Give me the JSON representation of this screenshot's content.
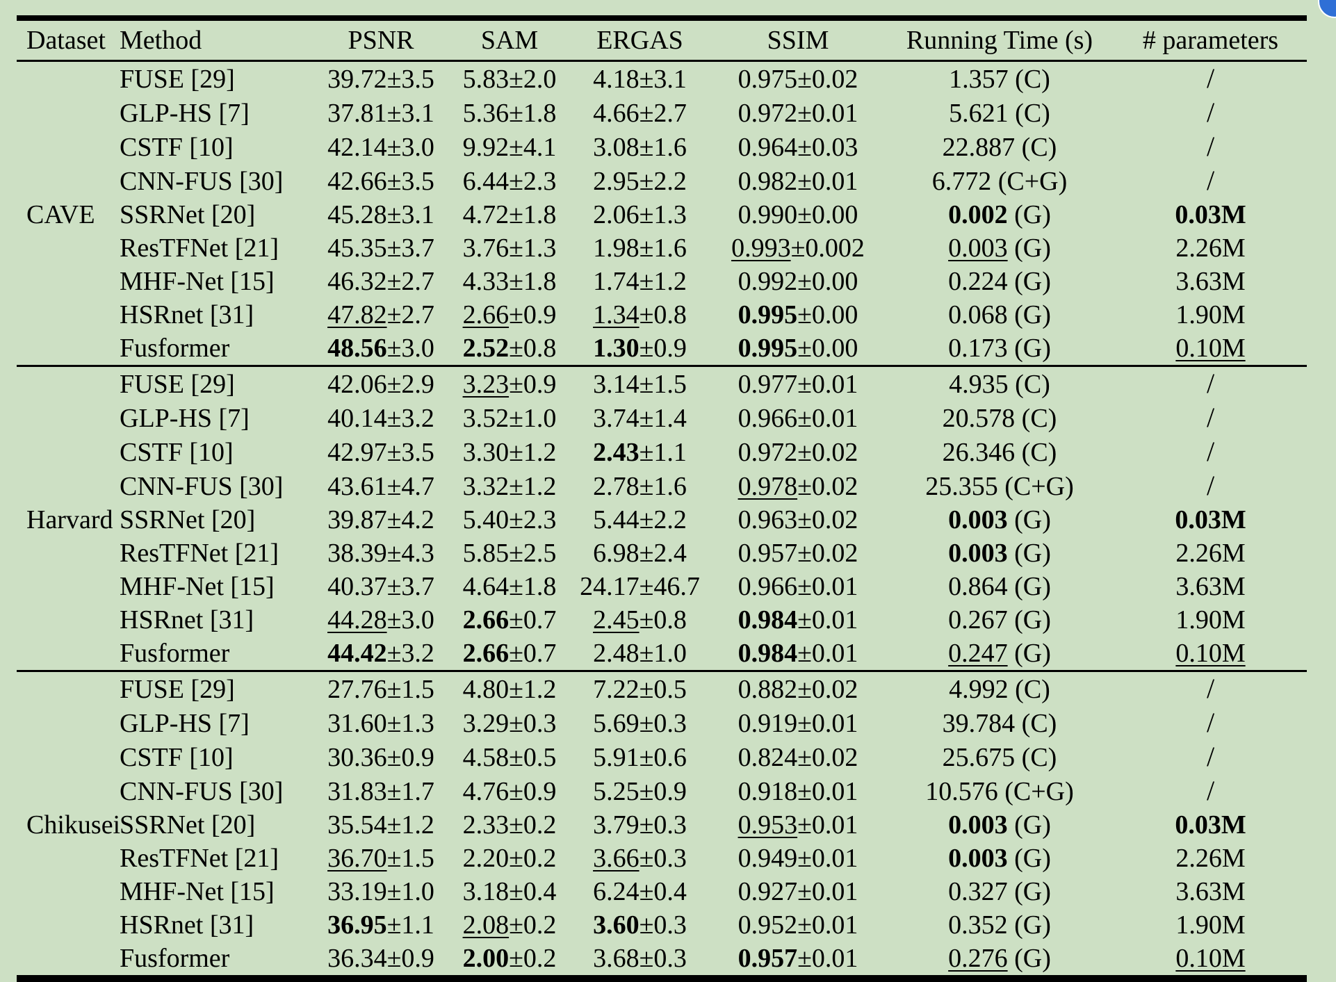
{
  "table": {
    "headers": [
      "Dataset",
      "Method",
      "PSNR",
      "SAM",
      "ERGAS",
      "SSIM",
      "Running Time (s)",
      "# parameters"
    ],
    "groups": [
      {
        "dataset": "CAVE",
        "rows": [
          {
            "method": "FUSE [29]",
            "psnr": {
              "v": "39.72",
              "pm": "3.5"
            },
            "sam": {
              "v": "5.83",
              "pm": "2.0"
            },
            "ergas": {
              "v": "4.18",
              "pm": "3.1"
            },
            "ssim": {
              "v": "0.975",
              "pm": "0.02"
            },
            "time": {
              "v": "1.357",
              "dev": "(C)"
            },
            "params": {
              "v": "/"
            }
          },
          {
            "method": "GLP-HS [7]",
            "psnr": {
              "v": "37.81",
              "pm": "3.1"
            },
            "sam": {
              "v": "5.36",
              "pm": "1.8"
            },
            "ergas": {
              "v": "4.66",
              "pm": "2.7"
            },
            "ssim": {
              "v": "0.972",
              "pm": "0.01"
            },
            "time": {
              "v": "5.621",
              "dev": "(C)"
            },
            "params": {
              "v": "/"
            }
          },
          {
            "method": "CSTF [10]",
            "psnr": {
              "v": "42.14",
              "pm": "3.0"
            },
            "sam": {
              "v": "9.92",
              "pm": "4.1"
            },
            "ergas": {
              "v": "3.08",
              "pm": "1.6"
            },
            "ssim": {
              "v": "0.964",
              "pm": "0.03"
            },
            "time": {
              "v": "22.887",
              "dev": "(C)"
            },
            "params": {
              "v": "/"
            }
          },
          {
            "method": "CNN-FUS [30]",
            "psnr": {
              "v": "42.66",
              "pm": "3.5"
            },
            "sam": {
              "v": "6.44",
              "pm": "2.3"
            },
            "ergas": {
              "v": "2.95",
              "pm": "2.2"
            },
            "ssim": {
              "v": "0.982",
              "pm": "0.01"
            },
            "time": {
              "v": "6.772",
              "dev": "(C+G)"
            },
            "params": {
              "v": "/"
            }
          },
          {
            "method": "SSRNet [20]",
            "psnr": {
              "v": "45.28",
              "pm": "3.1"
            },
            "sam": {
              "v": "4.72",
              "pm": "1.8"
            },
            "ergas": {
              "v": "2.06",
              "pm": "1.3"
            },
            "ssim": {
              "v": "0.990",
              "pm": "0.00"
            },
            "time": {
              "v": "0.002",
              "dev": "(G)",
              "s": "b"
            },
            "params": {
              "v": "0.03M",
              "s": "b"
            }
          },
          {
            "method": "ResTFNet [21]",
            "psnr": {
              "v": "45.35",
              "pm": "3.7"
            },
            "sam": {
              "v": "3.76",
              "pm": "1.3"
            },
            "ergas": {
              "v": "1.98",
              "pm": "1.6"
            },
            "ssim": {
              "v": "0.993",
              "pm": "0.002",
              "s": "u"
            },
            "time": {
              "v": "0.003",
              "dev": "(G)",
              "s": "u"
            },
            "params": {
              "v": "2.26M"
            }
          },
          {
            "method": "MHF-Net [15]",
            "psnr": {
              "v": "46.32",
              "pm": "2.7"
            },
            "sam": {
              "v": "4.33",
              "pm": "1.8"
            },
            "ergas": {
              "v": "1.74",
              "pm": "1.2"
            },
            "ssim": {
              "v": "0.992",
              "pm": "0.00"
            },
            "time": {
              "v": "0.224",
              "dev": "(G)"
            },
            "params": {
              "v": "3.63M"
            }
          },
          {
            "method": "HSRnet [31]",
            "psnr": {
              "v": "47.82",
              "pm": "2.7",
              "s": "u"
            },
            "sam": {
              "v": "2.66",
              "pm": "0.9",
              "s": "u"
            },
            "ergas": {
              "v": "1.34",
              "pm": "0.8",
              "s": "u"
            },
            "ssim": {
              "v": "0.995",
              "pm": "0.00",
              "s": "b"
            },
            "time": {
              "v": "0.068",
              "dev": "(G)"
            },
            "params": {
              "v": "1.90M"
            }
          },
          {
            "method": "Fusformer",
            "psnr": {
              "v": "48.56",
              "pm": "3.0",
              "s": "b"
            },
            "sam": {
              "v": "2.52",
              "pm": "0.8",
              "s": "b"
            },
            "ergas": {
              "v": "1.30",
              "pm": "0.9",
              "s": "b"
            },
            "ssim": {
              "v": "0.995",
              "pm": "0.00",
              "s": "b"
            },
            "time": {
              "v": "0.173",
              "dev": "(G)"
            },
            "params": {
              "v": "0.10M",
              "s": "u"
            }
          }
        ]
      },
      {
        "dataset": "Harvard",
        "rows": [
          {
            "method": "FUSE [29]",
            "psnr": {
              "v": "42.06",
              "pm": "2.9"
            },
            "sam": {
              "v": "3.23",
              "pm": "0.9",
              "s": "u"
            },
            "ergas": {
              "v": "3.14",
              "pm": "1.5"
            },
            "ssim": {
              "v": "0.977",
              "pm": "0.01"
            },
            "time": {
              "v": "4.935",
              "dev": "(C)"
            },
            "params": {
              "v": "/"
            }
          },
          {
            "method": "GLP-HS [7]",
            "psnr": {
              "v": "40.14",
              "pm": "3.2"
            },
            "sam": {
              "v": "3.52",
              "pm": "1.0"
            },
            "ergas": {
              "v": "3.74",
              "pm": "1.4"
            },
            "ssim": {
              "v": "0.966",
              "pm": "0.01"
            },
            "time": {
              "v": "20.578",
              "dev": "(C)"
            },
            "params": {
              "v": "/"
            }
          },
          {
            "method": "CSTF [10]",
            "psnr": {
              "v": "42.97",
              "pm": "3.5"
            },
            "sam": {
              "v": "3.30",
              "pm": "1.2"
            },
            "ergas": {
              "v": "2.43",
              "pm": "1.1",
              "s": "b"
            },
            "ssim": {
              "v": "0.972",
              "pm": "0.02"
            },
            "time": {
              "v": "26.346",
              "dev": "(C)"
            },
            "params": {
              "v": "/"
            }
          },
          {
            "method": "CNN-FUS [30]",
            "psnr": {
              "v": "43.61",
              "pm": "4.7"
            },
            "sam": {
              "v": "3.32",
              "pm": "1.2"
            },
            "ergas": {
              "v": "2.78",
              "pm": "1.6"
            },
            "ssim": {
              "v": "0.978",
              "pm": "0.02",
              "s": "u"
            },
            "time": {
              "v": "25.355",
              "dev": "(C+G)"
            },
            "params": {
              "v": "/"
            }
          },
          {
            "method": "SSRNet [20]",
            "psnr": {
              "v": "39.87",
              "pm": "4.2"
            },
            "sam": {
              "v": "5.40",
              "pm": "2.3"
            },
            "ergas": {
              "v": "5.44",
              "pm": "2.2"
            },
            "ssim": {
              "v": "0.963",
              "pm": "0.02"
            },
            "time": {
              "v": "0.003",
              "dev": "(G)",
              "s": "b"
            },
            "params": {
              "v": "0.03M",
              "s": "b"
            }
          },
          {
            "method": "ResTFNet [21]",
            "psnr": {
              "v": "38.39",
              "pm": "4.3"
            },
            "sam": {
              "v": "5.85",
              "pm": "2.5"
            },
            "ergas": {
              "v": "6.98",
              "pm": "2.4"
            },
            "ssim": {
              "v": "0.957",
              "pm": "0.02"
            },
            "time": {
              "v": "0.003",
              "dev": "(G)",
              "s": "b"
            },
            "params": {
              "v": "2.26M"
            }
          },
          {
            "method": "MHF-Net [15]",
            "psnr": {
              "v": "40.37",
              "pm": "3.7"
            },
            "sam": {
              "v": "4.64",
              "pm": "1.8"
            },
            "ergas": {
              "v": "24.17",
              "pm": "46.7"
            },
            "ssim": {
              "v": "0.966",
              "pm": "0.01"
            },
            "time": {
              "v": "0.864",
              "dev": "(G)"
            },
            "params": {
              "v": "3.63M"
            }
          },
          {
            "method": "HSRnet [31]",
            "psnr": {
              "v": "44.28",
              "pm": "3.0",
              "s": "u"
            },
            "sam": {
              "v": "2.66",
              "pm": "0.7",
              "s": "b"
            },
            "ergas": {
              "v": "2.45",
              "pm": "0.8",
              "s": "u"
            },
            "ssim": {
              "v": "0.984",
              "pm": "0.01",
              "s": "b"
            },
            "time": {
              "v": "0.267",
              "dev": "(G)"
            },
            "params": {
              "v": "1.90M"
            }
          },
          {
            "method": "Fusformer",
            "psnr": {
              "v": "44.42",
              "pm": "3.2",
              "s": "b"
            },
            "sam": {
              "v": "2.66",
              "pm": "0.7",
              "s": "b"
            },
            "ergas": {
              "v": "2.48",
              "pm": "1.0"
            },
            "ssim": {
              "v": "0.984",
              "pm": "0.01",
              "s": "b"
            },
            "time": {
              "v": "0.247",
              "dev": "(G)",
              "s": "u"
            },
            "params": {
              "v": "0.10M",
              "s": "u"
            }
          }
        ]
      },
      {
        "dataset": "Chikusei",
        "rows": [
          {
            "method": "FUSE [29]",
            "psnr": {
              "v": "27.76",
              "pm": "1.5"
            },
            "sam": {
              "v": "4.80",
              "pm": "1.2"
            },
            "ergas": {
              "v": "7.22",
              "pm": "0.5"
            },
            "ssim": {
              "v": "0.882",
              "pm": "0.02"
            },
            "time": {
              "v": "4.992",
              "dev": "(C)"
            },
            "params": {
              "v": "/"
            }
          },
          {
            "method": "GLP-HS [7]",
            "psnr": {
              "v": "31.60",
              "pm": "1.3"
            },
            "sam": {
              "v": "3.29",
              "pm": "0.3"
            },
            "ergas": {
              "v": "5.69",
              "pm": "0.3"
            },
            "ssim": {
              "v": "0.919",
              "pm": "0.01"
            },
            "time": {
              "v": "39.784",
              "dev": "(C)"
            },
            "params": {
              "v": "/"
            }
          },
          {
            "method": "CSTF [10]",
            "psnr": {
              "v": "30.36",
              "pm": "0.9"
            },
            "sam": {
              "v": "4.58",
              "pm": "0.5"
            },
            "ergas": {
              "v": "5.91",
              "pm": "0.6"
            },
            "ssim": {
              "v": "0.824",
              "pm": "0.02"
            },
            "time": {
              "v": "25.675",
              "dev": "(C)"
            },
            "params": {
              "v": "/"
            }
          },
          {
            "method": "CNN-FUS [30]",
            "psnr": {
              "v": "31.83",
              "pm": "1.7"
            },
            "sam": {
              "v": "4.76",
              "pm": "0.9"
            },
            "ergas": {
              "v": "5.25",
              "pm": "0.9"
            },
            "ssim": {
              "v": "0.918",
              "pm": "0.01"
            },
            "time": {
              "v": "10.576",
              "dev": "(C+G)"
            },
            "params": {
              "v": "/"
            }
          },
          {
            "method": "SSRNet [20]",
            "psnr": {
              "v": "35.54",
              "pm": "1.2"
            },
            "sam": {
              "v": "2.33",
              "pm": "0.2"
            },
            "ergas": {
              "v": "3.79",
              "pm": "0.3"
            },
            "ssim": {
              "v": "0.953",
              "pm": "0.01",
              "s": "u"
            },
            "time": {
              "v": "0.003",
              "dev": "(G)",
              "s": "b"
            },
            "params": {
              "v": "0.03M",
              "s": "b"
            }
          },
          {
            "method": "ResTFNet [21]",
            "psnr": {
              "v": "36.70",
              "pm": "1.5",
              "s": "u"
            },
            "sam": {
              "v": "2.20",
              "pm": "0.2"
            },
            "ergas": {
              "v": "3.66",
              "pm": "0.3",
              "s": "u"
            },
            "ssim": {
              "v": "0.949",
              "pm": "0.01"
            },
            "time": {
              "v": "0.003",
              "dev": "(G)",
              "s": "b"
            },
            "params": {
              "v": "2.26M"
            }
          },
          {
            "method": "MHF-Net [15]",
            "psnr": {
              "v": "33.19",
              "pm": "1.0"
            },
            "sam": {
              "v": "3.18",
              "pm": "0.4"
            },
            "ergas": {
              "v": "6.24",
              "pm": "0.4"
            },
            "ssim": {
              "v": "0.927",
              "pm": "0.01"
            },
            "time": {
              "v": "0.327",
              "dev": "(G)"
            },
            "params": {
              "v": "3.63M"
            }
          },
          {
            "method": "HSRnet [31]",
            "psnr": {
              "v": "36.95",
              "pm": "1.1",
              "s": "b"
            },
            "sam": {
              "v": "2.08",
              "pm": "0.2",
              "s": "u"
            },
            "ergas": {
              "v": "3.60",
              "pm": "0.3",
              "s": "b"
            },
            "ssim": {
              "v": "0.952",
              "pm": "0.01"
            },
            "time": {
              "v": "0.352",
              "dev": "(G)"
            },
            "params": {
              "v": "1.90M"
            }
          },
          {
            "method": "Fusformer",
            "psnr": {
              "v": "36.34",
              "pm": "0.9"
            },
            "sam": {
              "v": "2.00",
              "pm": "0.2",
              "s": "b"
            },
            "ergas": {
              "v": "3.68",
              "pm": "0.3"
            },
            "ssim": {
              "v": "0.957",
              "pm": "0.01",
              "s": "b"
            },
            "time": {
              "v": "0.276",
              "dev": "(G)",
              "s": "u"
            },
            "params": {
              "v": "0.10M",
              "s": "u"
            }
          }
        ]
      }
    ]
  }
}
